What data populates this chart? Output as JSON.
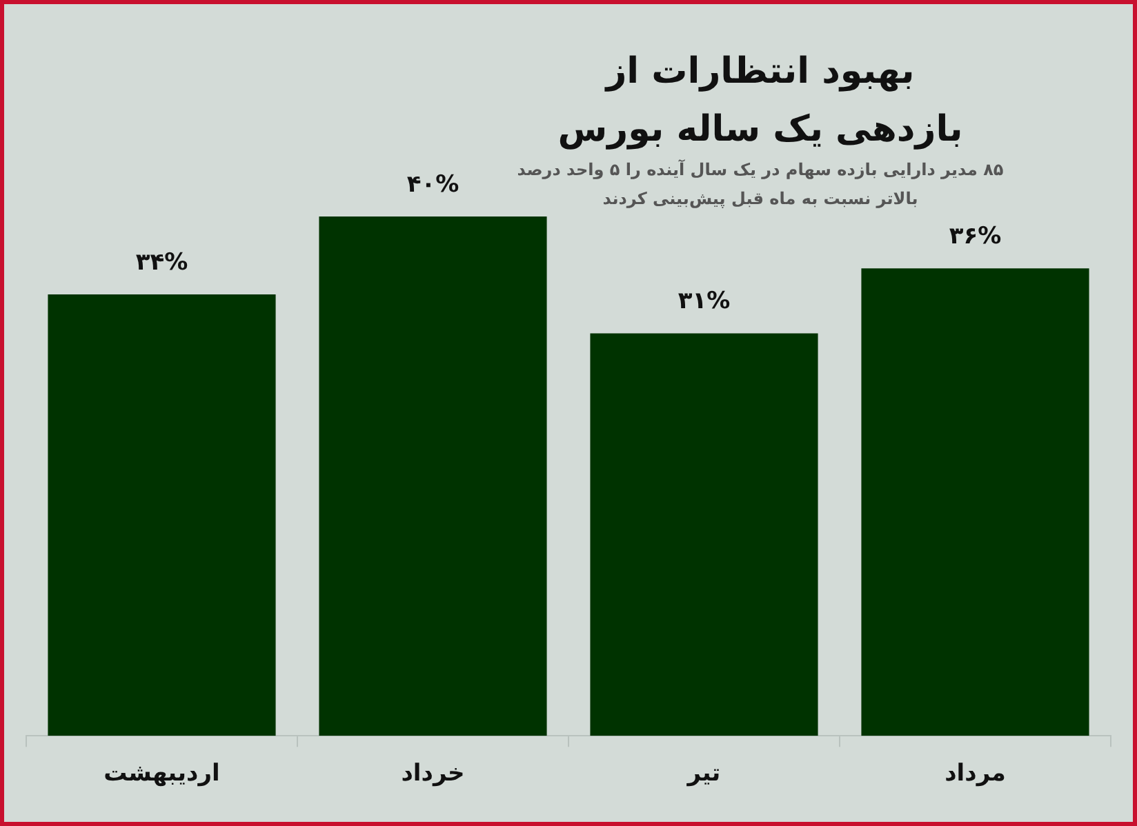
{
  "chart_data": {
    "type": "bar",
    "title": "بهبود انتظارات از بازدهی یک ساله بورس",
    "subtitle": "۸۵ مدیر دارایی بازده سهام در یک سال آینده را ۵ واحد درصد بالاتر نسبت به ماه قبل پیش‌بینی کردند",
    "categories": [
      "اردیبهشت",
      "خرداد",
      "تیر",
      "مرداد"
    ],
    "values": [
      34,
      40,
      31,
      36
    ],
    "value_labels": [
      "۳۴%",
      "۴۰%",
      "۳۱%",
      "۳۶%"
    ],
    "color": "#003300",
    "tick_labels": "x",
    "grid": false,
    "legend": false
  }
}
